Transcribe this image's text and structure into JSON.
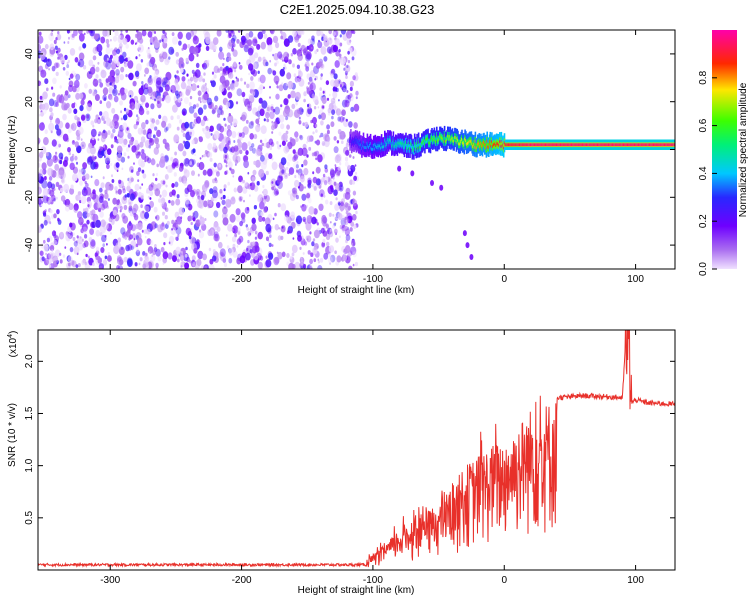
{
  "title": "C2E1.2025.094.10.38.G23",
  "chart_data": [
    {
      "type": "heatmap",
      "xlabel": "Height of straight line (km)",
      "ylabel": "Frequency (Hz)",
      "xlim": [
        -355,
        130
      ],
      "ylim": [
        -50,
        50
      ],
      "xticks": [
        -300,
        -200,
        -100,
        0,
        100
      ],
      "yticks": [
        -40,
        -20,
        0,
        20,
        40
      ],
      "xtick_labels": [
        "-300",
        "-200",
        "-100",
        "0",
        "100"
      ],
      "ytick_labels": [
        "-40",
        "-20",
        "0",
        "20",
        "40"
      ],
      "colorbar": {
        "label": "Normalized spectral amplitude",
        "range": [
          0,
          1
        ],
        "ticks": [
          0.0,
          0.2,
          0.4,
          0.6,
          0.8
        ],
        "tick_labels": [
          "0.0",
          "0.2",
          "0.4",
          "0.6",
          "0.8"
        ]
      },
      "noise_region_x": [
        -355,
        -112
      ],
      "signal_track": {
        "x": [
          -118,
          -110,
          -100,
          -90,
          -80,
          -70,
          -60,
          -50,
          -40,
          -30,
          -20,
          -10,
          0,
          20,
          50,
          90,
          130
        ],
        "freq": [
          4,
          2,
          1,
          3,
          2,
          1,
          3,
          5,
          4,
          3,
          2,
          2,
          2,
          2,
          2,
          2,
          2
        ],
        "amplitude": [
          0.25,
          0.35,
          0.4,
          0.45,
          0.5,
          0.55,
          0.6,
          0.65,
          0.7,
          0.75,
          0.8,
          0.85,
          0.9,
          0.95,
          0.95,
          0.95,
          0.95
        ]
      }
    },
    {
      "type": "line",
      "xlabel": "Height of straight line (km)",
      "ylabel": "SNR (10 * v/v)",
      "y_multiplier": "(x10",
      "y_multiplier_exp": "4",
      "xlim": [
        -355,
        130
      ],
      "ylim": [
        0,
        23000
      ],
      "xticks": [
        -300,
        -200,
        -100,
        0,
        100
      ],
      "yticks": [
        5000,
        10000,
        15000,
        20000
      ],
      "xtick_labels": [
        "-300",
        "-200",
        "-100",
        "0",
        "100"
      ],
      "ytick_labels": [
        "0.5",
        "1.0",
        "1.5",
        "2.0"
      ],
      "color": "#e8302a",
      "envelope": {
        "x": [
          -355,
          -340,
          -110,
          -100,
          -90,
          -80,
          -70,
          -60,
          -50,
          -40,
          -30,
          -20,
          -10,
          0,
          10,
          20,
          30,
          40,
          60,
          80,
          90,
          92,
          95,
          97,
          100,
          110,
          130
        ],
        "y": [
          500,
          1000,
          500,
          1500,
          2500,
          4000,
          5000,
          5500,
          6500,
          8000,
          10000,
          11000,
          12000,
          12500,
          14000,
          15500,
          16000,
          16500,
          16700,
          16600,
          16500,
          21000,
          23000,
          16000,
          16300,
          16000,
          15900
        ]
      }
    }
  ]
}
